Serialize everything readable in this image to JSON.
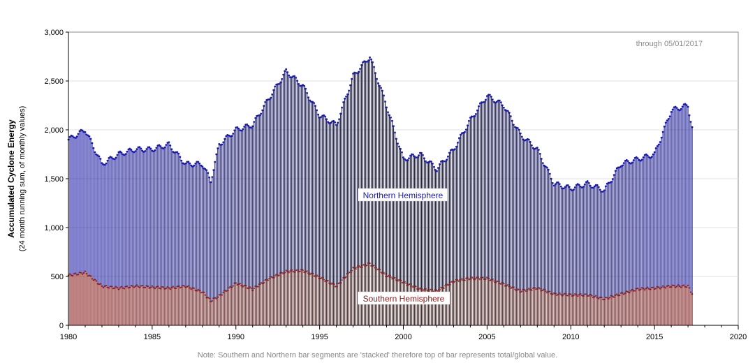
{
  "chart_data": {
    "type": "bar",
    "stacked": true,
    "ylabel": "Accumulated Cyclone Energy",
    "ylabel2": "(24 month running sum, of monthly values)",
    "annotation": "through 05/01/2017",
    "note": "Note: Southern and Northern bar segments are 'stacked' therefore top of bar represents total/global value.",
    "xlim": [
      1980,
      2020
    ],
    "ylim": [
      0,
      3000
    ],
    "x_ticks": [
      1980,
      1985,
      1990,
      1995,
      2000,
      2005,
      2010,
      2015,
      2020
    ],
    "x_tick_labels": [
      "1980",
      "1985",
      "1990",
      "1995",
      "2000",
      "2005",
      "2010",
      "2015",
      "2020"
    ],
    "y_ticks": [
      0,
      500,
      1000,
      1500,
      2000,
      2500,
      3000
    ],
    "y_tick_labels": [
      "0",
      "500",
      "1,000",
      "1,500",
      "2,000",
      "2,500",
      "3,000"
    ],
    "grid": "horizontal",
    "series": [
      {
        "name": "Southern Hemisphere",
        "color": "#8b1a1a",
        "x": [
          1980.0,
          1981.0,
          1982.0,
          1983.0,
          1984.0,
          1985.0,
          1986.0,
          1987.0,
          1988.0,
          1988.5,
          1989.0,
          1990.0,
          1991.0,
          1992.0,
          1993.0,
          1994.0,
          1995.0,
          1996.0,
          1997.0,
          1998.0,
          1999.0,
          2000.0,
          2001.0,
          2002.0,
          2003.0,
          2004.0,
          2005.0,
          2006.0,
          2007.0,
          2008.0,
          2009.0,
          2010.0,
          2011.0,
          2012.0,
          2013.0,
          2014.0,
          2015.0,
          2016.0,
          2017.0,
          2017.33
        ],
        "values": [
          510,
          540,
          400,
          380,
          400,
          390,
          380,
          400,
          340,
          250,
          300,
          430,
          370,
          480,
          550,
          560,
          490,
          400,
          580,
          630,
          510,
          440,
          370,
          350,
          450,
          480,
          480,
          420,
          350,
          380,
          320,
          310,
          310,
          270,
          320,
          370,
          380,
          400,
          400,
          300
        ]
      },
      {
        "name": "Northern Hemisphere",
        "color": "#1a1aaa",
        "x": [
          1980.0,
          1981.0,
          1982.0,
          1983.0,
          1984.0,
          1985.0,
          1986.0,
          1987.0,
          1988.0,
          1988.5,
          1989.0,
          1990.0,
          1991.0,
          1992.0,
          1993.0,
          1994.0,
          1995.0,
          1996.0,
          1997.0,
          1998.0,
          1999.0,
          2000.0,
          2001.0,
          2002.0,
          2003.0,
          2004.0,
          2005.0,
          2006.0,
          2007.0,
          2008.0,
          2009.0,
          2010.0,
          2011.0,
          2012.0,
          2013.0,
          2014.0,
          2015.0,
          2016.0,
          2017.0,
          2017.33
        ],
        "totals": [
          1900,
          2000,
          1650,
          1750,
          1800,
          1800,
          1850,
          1650,
          1650,
          1480,
          1850,
          2000,
          2050,
          2330,
          2600,
          2450,
          2150,
          2050,
          2550,
          2750,
          2250,
          1700,
          1750,
          1600,
          1800,
          2100,
          2350,
          2250,
          1950,
          1800,
          1450,
          1400,
          1450,
          1380,
          1650,
          1700,
          1750,
          2200,
          2250,
          1950
        ],
        "values": [
          1390,
          1460,
          1250,
          1370,
          1400,
          1410,
          1470,
          1250,
          1310,
          1230,
          1550,
          1570,
          1680,
          1850,
          2050,
          1890,
          1660,
          1650,
          1970,
          2120,
          1740,
          1260,
          1380,
          1250,
          1350,
          1620,
          1870,
          1830,
          1600,
          1420,
          1130,
          1090,
          1140,
          1110,
          1330,
          1330,
          1370,
          1800,
          1850,
          1650
        ]
      }
    ],
    "labels": {
      "northern": "Northern Hemisphere",
      "southern": "Southern Hemisphere"
    }
  }
}
